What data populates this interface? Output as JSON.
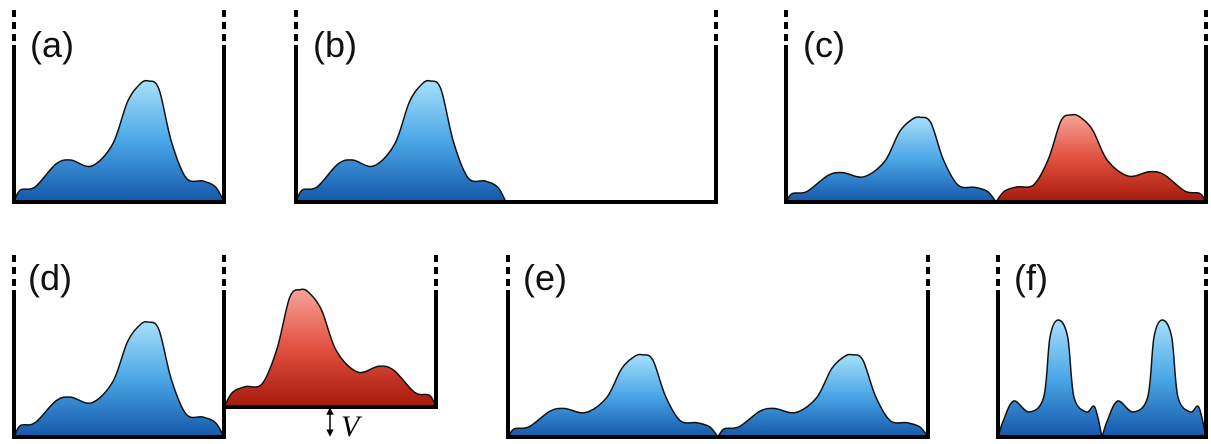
{
  "panels": [
    {
      "label": "(a)"
    },
    {
      "label": "(b)"
    },
    {
      "label": "(c)"
    },
    {
      "label": "(d)"
    },
    {
      "label": "(e)"
    },
    {
      "label": "(f)"
    }
  ],
  "potential_label": "V"
}
